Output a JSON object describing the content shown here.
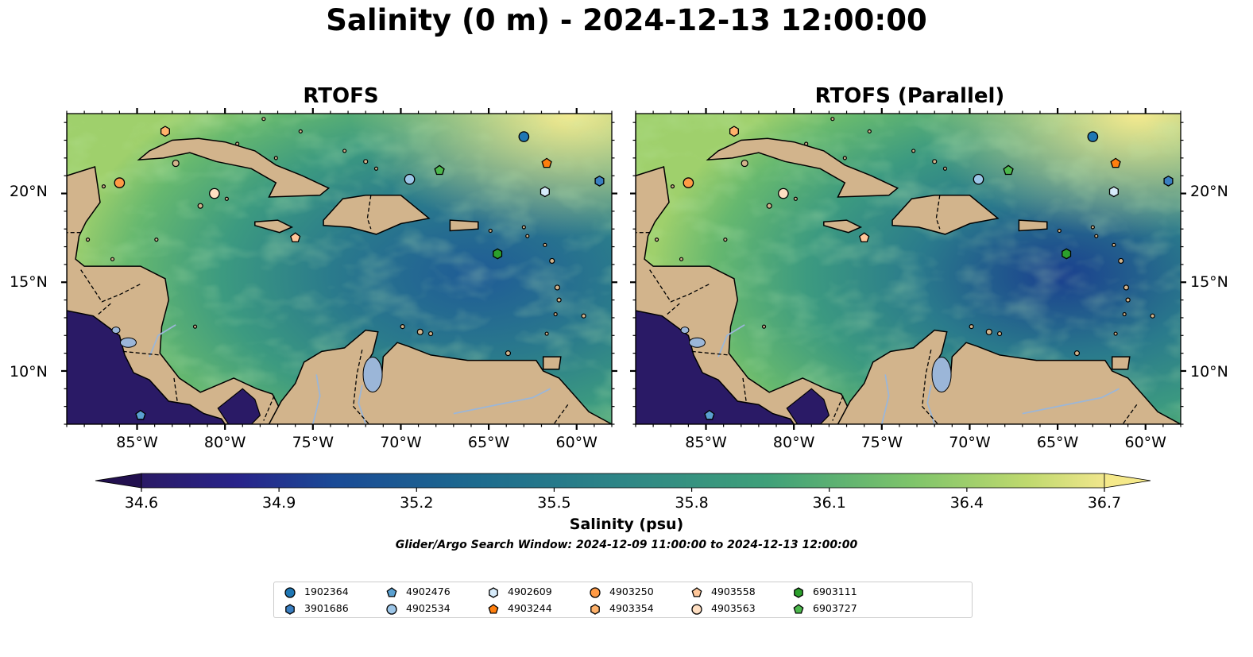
{
  "title": "Salinity (0 m) - 2024-12-13 12:00:00",
  "panels": [
    {
      "id": "left",
      "title": "RTOFS"
    },
    {
      "id": "right",
      "title": "RTOFS (Parallel)"
    }
  ],
  "map": {
    "x_ticks": [
      "85°W",
      "80°W",
      "75°W",
      "70°W",
      "65°W",
      "60°W"
    ],
    "y_ticks": [
      "20°N",
      "15°N",
      "10°N"
    ],
    "lon_range": [
      -89,
      -58
    ],
    "lat_range": [
      7,
      24.5
    ],
    "land_color": "#d2b48c",
    "coast_color": "#000000",
    "river_color": "#9bb6d8"
  },
  "colorbar": {
    "label": "Salinity (psu)",
    "ticks": [
      "34.6",
      "34.9",
      "35.2",
      "35.5",
      "35.8",
      "36.1",
      "36.4",
      "36.7"
    ],
    "min": 34.6,
    "max": 36.7,
    "colormap": "haline"
  },
  "search_window": "Glider/Argo Search Window: 2024-12-09 11:00:00 to 2024-12-13 12:00:00",
  "floats": [
    {
      "id": "1902364",
      "marker": "circle",
      "color": "#1f77b4",
      "lon": -63.0,
      "lat": 23.2
    },
    {
      "id": "3901686",
      "marker": "hexagon",
      "color": "#3a7fc1",
      "lon": -58.7,
      "lat": 20.7
    },
    {
      "id": "4902476",
      "marker": "pentagon",
      "color": "#5aa0d0",
      "lon": -84.8,
      "lat": 7.5
    },
    {
      "id": "4902534",
      "marker": "circle",
      "color": "#9dc6e8",
      "lon": -69.5,
      "lat": 20.8
    },
    {
      "id": "4902609",
      "marker": "hexagon",
      "color": "#d6ebfa",
      "lon": -61.8,
      "lat": 20.1
    },
    {
      "id": "4903244",
      "marker": "pentagon",
      "color": "#ff7f0e",
      "lon": -61.7,
      "lat": 21.7
    },
    {
      "id": "4903250",
      "marker": "circle",
      "color": "#ff9a45",
      "lon": -86.0,
      "lat": 20.6
    },
    {
      "id": "4903354",
      "marker": "hexagon",
      "color": "#ffb26b",
      "lon": -83.4,
      "lat": 23.5
    },
    {
      "id": "4903558",
      "marker": "pentagon",
      "color": "#ffc79a",
      "lon": -76.0,
      "lat": 17.5
    },
    {
      "id": "4903563",
      "marker": "circle",
      "color": "#ffdfc2",
      "lon": -80.6,
      "lat": 20.0
    },
    {
      "id": "6903111",
      "marker": "hexagon",
      "color": "#2ca02c",
      "lon": -64.5,
      "lat": 16.6
    },
    {
      "id": "6903727",
      "marker": "pentagon",
      "color": "#4cb84c",
      "lon": -67.8,
      "lat": 21.3
    }
  ]
}
